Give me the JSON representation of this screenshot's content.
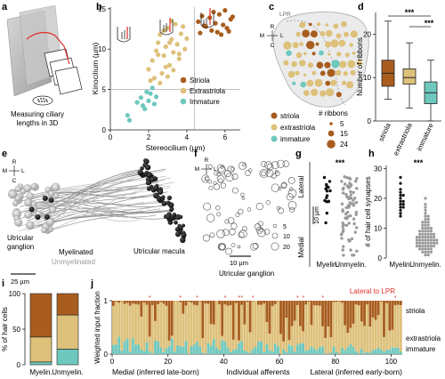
{
  "colors": {
    "striola": "#a85d1e",
    "extrastriola": "#ddc07a",
    "immature": "#6ec8be",
    "axis": "#222222",
    "red": "#e0302a",
    "grey": "#9a9a9a"
  },
  "panels": {
    "a": {
      "letter": "a",
      "caption_line1": "Measuring ciliary",
      "caption_line2": "lengths in 3D"
    },
    "b": {
      "letter": "b",
      "xlabel": "Stereocilium (µm)",
      "ylabel": "Kinocilium (µm)",
      "legend": [
        "Striola",
        "Extrastriola",
        "Immature"
      ]
    },
    "c": {
      "letter": "c",
      "lpr_label": "LPR",
      "orientation": {
        "top": "R",
        "left": "M",
        "right": "L",
        "bottom": "C"
      },
      "legend_classes": [
        "striola",
        "extrastriola",
        "immature"
      ],
      "ribbons_title": "# ribbons",
      "ribbon_sizes": [
        "5",
        "15",
        "24"
      ]
    },
    "d": {
      "letter": "d",
      "ylabel": "Number of ribbons",
      "categories": [
        "striola",
        "extrastriola",
        "immature"
      ],
      "sig1": "***",
      "sig2": "***"
    },
    "e": {
      "letter": "e",
      "orientation": {
        "top": "R",
        "left": "M",
        "right": "L",
        "bottom": "C"
      },
      "label_ganglion": "Utricular ganglion",
      "label_myelinated": "Myelinated",
      "label_unmyelinated": "Unmyelinated",
      "label_macula": "Utricular macula",
      "scalebar": "25 µm"
    },
    "f": {
      "letter": "f",
      "orientation": {
        "top": "R",
        "left": "M",
        "right": "L",
        "bottom": "C"
      },
      "sizes": [
        "5",
        "10",
        "20"
      ],
      "scalebar": "10 µm",
      "caption": "Utricular ganglion"
    },
    "g": {
      "letter": "g",
      "top_label": "Lateral",
      "bottom_label": "Medial",
      "scalebar": "10 µm",
      "categories": [
        "Myelin.",
        "Unmyelin."
      ],
      "sig": "***"
    },
    "h": {
      "letter": "h",
      "ylabel": "# of hair cell synapses",
      "categories": [
        "Myelin.",
        "Unmyelin."
      ],
      "sig": "***"
    },
    "i": {
      "letter": "i",
      "ylabel": "% of hair cells",
      "categories": [
        "Myelin.",
        "Unmyelin."
      ]
    },
    "j": {
      "letter": "j",
      "ylabel": "Weighted input fraction",
      "lateral_note": "Lateral to LPR",
      "legend": [
        "striola",
        "extrastriola",
        "immature"
      ],
      "xlabel_left": "Medial (inferred late-born)",
      "xlabel_mid": "Individual afferents",
      "xlabel_right": "Lateral (inferred early-born)"
    }
  },
  "chart_data": [
    {
      "panel": "b",
      "type": "scatter",
      "xlabel": "Stereocilium (µm)",
      "ylabel": "Kinocilium (µm)",
      "xlim": [
        0,
        6.8
      ],
      "ylim": [
        0,
        15.2
      ],
      "xticks": [
        0,
        2,
        4,
        6
      ],
      "yticks": [
        0,
        5,
        10,
        15
      ],
      "thresholds": {
        "x": 4.4,
        "y": 5
      },
      "series": [
        {
          "name": "Striola",
          "points": [
            [
              4.6,
              13.4
            ],
            [
              4.8,
              14.1
            ],
            [
              5.0,
              12.8
            ],
            [
              5.2,
              13.9
            ],
            [
              5.4,
              14.6
            ],
            [
              5.5,
              13.2
            ],
            [
              5.7,
              14.3
            ],
            [
              5.9,
              13.0
            ],
            [
              6.0,
              14.8
            ],
            [
              6.1,
              12.6
            ],
            [
              6.3,
              13.7
            ],
            [
              5.3,
              12.3
            ],
            [
              4.9,
              12.9
            ],
            [
              5.6,
              12.1
            ],
            [
              6.2,
              12.2
            ],
            [
              5.8,
              11.8
            ],
            [
              4.7,
              12.0
            ],
            [
              6.4,
              14.0
            ]
          ]
        },
        {
          "name": "Extrastriola",
          "points": [
            [
              2.0,
              7.5
            ],
            [
              2.2,
              8.6
            ],
            [
              2.4,
              9.8
            ],
            [
              2.5,
              10.8
            ],
            [
              2.6,
              11.8
            ],
            [
              2.7,
              7.0
            ],
            [
              2.8,
              9.2
            ],
            [
              2.9,
              10.3
            ],
            [
              3.0,
              12.6
            ],
            [
              3.1,
              8.0
            ],
            [
              3.2,
              11.2
            ],
            [
              3.3,
              9.6
            ],
            [
              3.4,
              13.1
            ],
            [
              3.5,
              10.6
            ],
            [
              3.6,
              8.8
            ],
            [
              3.7,
              11.9
            ],
            [
              3.8,
              12.8
            ],
            [
              3.9,
              10.0
            ],
            [
              2.3,
              6.4
            ],
            [
              2.6,
              5.8
            ],
            [
              3.0,
              6.6
            ],
            [
              3.3,
              7.4
            ],
            [
              2.1,
              6.1
            ],
            [
              3.6,
              9.4
            ],
            [
              4.0,
              11.3
            ],
            [
              2.8,
              12.3
            ],
            [
              3.2,
              13.5
            ],
            [
              2.5,
              9.3
            ],
            [
              3.1,
              10.8
            ],
            [
              2.9,
              7.8
            ]
          ]
        },
        {
          "name": "Immature",
          "points": [
            [
              0.9,
              1.8
            ],
            [
              1.0,
              1.2
            ],
            [
              1.4,
              3.4
            ],
            [
              1.6,
              4.0
            ],
            [
              1.7,
              3.0
            ],
            [
              1.9,
              4.7
            ],
            [
              2.0,
              3.6
            ],
            [
              2.1,
              4.5
            ],
            [
              1.8,
              2.6
            ],
            [
              2.2,
              5.2
            ],
            [
              2.4,
              4.1
            ],
            [
              2.3,
              3.2
            ]
          ]
        }
      ]
    },
    {
      "panel": "d",
      "type": "box",
      "ylabel": "Number of ribbons",
      "ylim": [
        0,
        25
      ],
      "yticks": [
        0,
        10,
        20
      ],
      "categories": [
        "striola",
        "extrastriola",
        "immature"
      ],
      "boxes": [
        {
          "min": 5,
          "q1": 8,
          "median": 11,
          "q3": 14,
          "max": 23
        },
        {
          "min": 3,
          "q1": 8.5,
          "median": 10,
          "q3": 12,
          "max": 18
        },
        {
          "min": 0,
          "q1": 4,
          "median": 6.5,
          "q3": 9,
          "max": 14
        }
      ]
    },
    {
      "panel": "h",
      "type": "scatter",
      "ylabel": "# of hair cell synapses",
      "ylim": [
        0,
        31
      ],
      "yticks": [
        0,
        10,
        20,
        30
      ],
      "categories": [
        "Myelin.",
        "Unmyelin."
      ],
      "series": [
        {
          "name": "Myelin.",
          "values": [
            27,
            25,
            23,
            22,
            21,
            21,
            20,
            19,
            19,
            18,
            18,
            17,
            17,
            16,
            15,
            14
          ]
        },
        {
          "name": "Unmyelin.",
          "values": [
            20,
            18,
            17,
            16,
            15,
            14,
            14,
            13,
            13,
            12,
            12,
            12,
            11,
            11,
            11,
            10,
            10,
            10,
            10,
            9,
            9,
            9,
            9,
            9,
            8,
            8,
            8,
            8,
            8,
            8,
            7,
            7,
            7,
            7,
            7,
            7,
            7,
            6,
            6,
            6,
            6,
            6,
            6,
            6,
            6,
            5,
            5,
            5,
            5,
            5,
            5,
            5,
            5,
            4,
            4,
            4,
            4,
            4,
            4,
            4,
            3,
            3,
            3,
            3,
            3,
            2,
            2,
            2,
            2,
            1,
            1
          ]
        }
      ]
    },
    {
      "panel": "i",
      "type": "bar",
      "stacked": true,
      "ylabel": "% of hair cells",
      "ylim": [
        0,
        100
      ],
      "yticks": [
        0,
        50,
        100
      ],
      "categories": [
        "Myelin.",
        "Unmyelin."
      ],
      "series": [
        {
          "name": "immature",
          "values": [
            4,
            22
          ]
        },
        {
          "name": "extrastriola",
          "values": [
            35,
            48
          ]
        },
        {
          "name": "striola",
          "values": [
            61,
            30
          ]
        }
      ]
    },
    {
      "panel": "j",
      "type": "bar",
      "stacked": true,
      "ylabel": "Weighted input fraction",
      "ylim": [
        0,
        1
      ],
      "yticks": [
        0,
        1
      ],
      "xticks": [
        0,
        20,
        40,
        60,
        80,
        100
      ],
      "lateral_to_lpr": [
        14,
        25,
        31,
        41,
        46,
        47,
        51,
        67,
        69,
        76,
        102
      ]
    }
  ]
}
